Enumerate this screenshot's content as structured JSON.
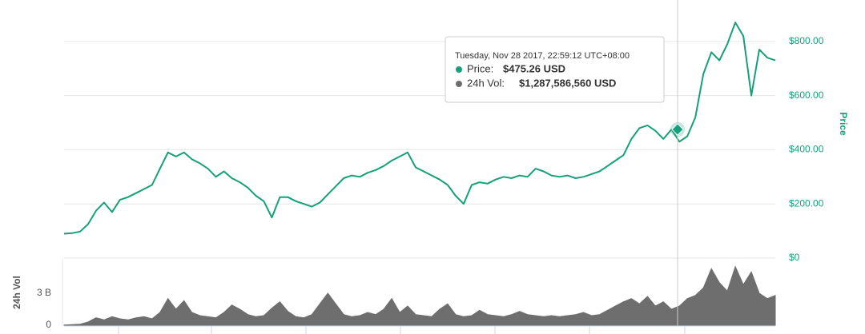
{
  "chart_data": {
    "type": "line",
    "price_axis_title": "Price",
    "volume_axis_title": "24h Vol",
    "series": [
      {
        "name": "Price",
        "color": "#16a07a",
        "values": [
          90,
          92,
          98,
          125,
          175,
          205,
          170,
          215,
          225,
          240,
          255,
          270,
          330,
          390,
          375,
          390,
          365,
          350,
          330,
          300,
          320,
          295,
          280,
          260,
          230,
          210,
          150,
          225,
          225,
          210,
          200,
          190,
          205,
          235,
          265,
          295,
          305,
          300,
          315,
          325,
          340,
          360,
          375,
          390,
          335,
          320,
          305,
          290,
          270,
          230,
          200,
          270,
          280,
          275,
          290,
          300,
          295,
          305,
          300,
          330,
          320,
          305,
          300,
          305,
          295,
          300,
          310,
          320,
          340,
          360,
          380,
          440,
          480,
          490,
          470,
          440,
          475,
          430,
          450,
          520,
          680,
          760,
          730,
          790,
          870,
          820,
          600,
          770,
          740,
          730
        ]
      },
      {
        "name": "24h Vol",
        "color": "#6e6e6e",
        "axis": "y2",
        "values": [
          20000000.0,
          50000000.0,
          100000000.0,
          300000000.0,
          700000000.0,
          500000000.0,
          800000000.0,
          600000000.0,
          500000000.0,
          700000000.0,
          800000000.0,
          600000000.0,
          1200000000.0,
          2500000000.0,
          1500000000.0,
          2300000000.0,
          1200000000.0,
          900000000.0,
          800000000.0,
          700000000.0,
          1200000000.0,
          1900000000.0,
          1500000000.0,
          1000000000.0,
          800000000.0,
          900000000.0,
          1600000000.0,
          2200000000.0,
          1300000000.0,
          800000000.0,
          700000000.0,
          1000000000.0,
          2000000000.0,
          3000000000.0,
          2000000000.0,
          1000000000.0,
          800000000.0,
          900000000.0,
          1200000000.0,
          1000000000.0,
          1500000000.0,
          2500000000.0,
          1200000000.0,
          1800000000.0,
          1000000000.0,
          900000000.0,
          800000000.0,
          1500000000.0,
          2000000000.0,
          1000000000.0,
          800000000.0,
          900000000.0,
          1400000000.0,
          1000000000.0,
          900000000.0,
          800000000.0,
          1000000000.0,
          1300000000.0,
          1000000000.0,
          900000000.0,
          800000000.0,
          900000000.0,
          800000000.0,
          900000000.0,
          1000000000.0,
          1200000000.0,
          900000000.0,
          1000000000.0,
          1400000000.0,
          1800000000.0,
          2200000000.0,
          2500000000.0,
          2000000000.0,
          2700000000.0,
          1800000000.0,
          2200000000.0,
          1500000000.0,
          1800000000.0,
          2500000000.0,
          2800000000.0,
          3500000000.0,
          5300000000.0,
          4000000000.0,
          3200000000.0,
          5500000000.0,
          3800000000.0,
          5000000000.0,
          3000000000.0,
          2500000000.0,
          2800000000.0
        ]
      }
    ],
    "ylim": [
      0,
      950
    ],
    "yticks": [
      {
        "value": 0,
        "label": "$0"
      },
      {
        "value": 200,
        "label": "$200.00"
      },
      {
        "value": 400,
        "label": "$400.00"
      },
      {
        "value": 600,
        "label": "$600.00"
      },
      {
        "value": 800,
        "label": "$800.00"
      }
    ],
    "y2lim": [
      0,
      6300000000
    ],
    "y2ticks": [
      0,
      {
        "value": 3000000000,
        "label": "3 B"
      }
    ],
    "grid": true,
    "tooltip": {
      "date": "Tuesday, Nov 28 2017, 22:59:12 UTC+08:00",
      "price_label": "Price:",
      "price_value": "$475.26 USD",
      "volume_label": "24h Vol:",
      "volume_value": "$1,287,586,560 USD"
    }
  }
}
